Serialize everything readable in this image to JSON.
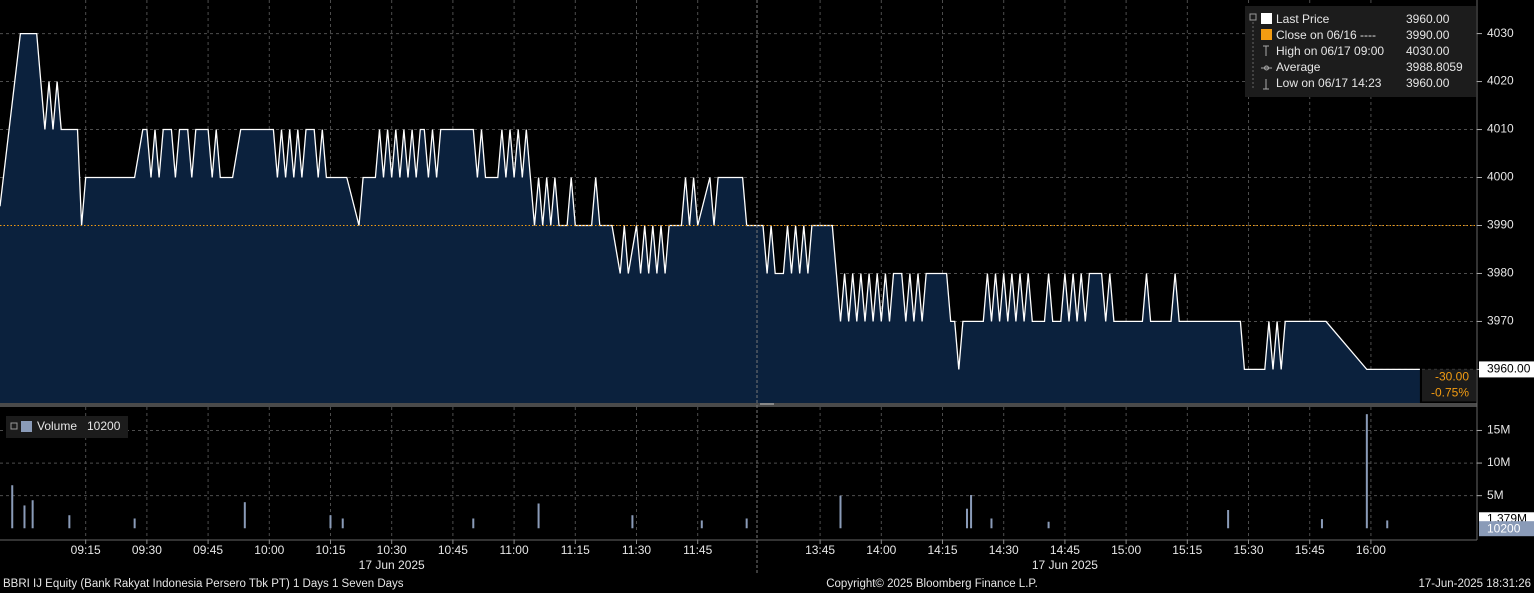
{
  "chart_data": [
    {
      "type": "area",
      "title": "BBRI IJ Equity",
      "xlim": [
        "08:54",
        "16:26"
      ],
      "session_break": [
        "12:00",
        "13:30"
      ],
      "xticks": [
        "09:15",
        "09:30",
        "09:45",
        "10:00",
        "10:15",
        "10:30",
        "10:45",
        "11:00",
        "11:15",
        "11:30",
        "11:45",
        "13:45",
        "14:00",
        "14:15",
        "14:30",
        "14:45",
        "15:00",
        "15:15",
        "15:30",
        "15:45",
        "16:00"
      ],
      "x_date_label": "17 Jun 2025",
      "ylim": [
        3953,
        4037
      ],
      "yticks": [
        3960,
        3970,
        3980,
        3990,
        4000,
        4010,
        4020,
        4030
      ],
      "grid": true,
      "series": [
        {
          "name": "Last Price",
          "color": "#ffffff",
          "fill": "#0b213d",
          "x": [
            "08:54",
            "08:59",
            "09:03",
            "09:04",
            "09:05",
            "09:06",
            "09:07",
            "09:08",
            "09:09",
            "09:13",
            "09:14",
            "09:15",
            "09:27",
            "09:29",
            "09:30",
            "09:31",
            "09:32",
            "09:33",
            "09:34",
            "09:36",
            "09:37",
            "09:38",
            "09:40",
            "09:41",
            "09:42",
            "09:45",
            "09:46",
            "09:47",
            "09:48",
            "09:51",
            "09:53",
            "10:01",
            "10:02",
            "10:03",
            "10:04",
            "10:05",
            "10:06",
            "10:07",
            "10:08",
            "10:09",
            "10:11",
            "10:12",
            "10:13",
            "10:14",
            "10:19",
            "10:22",
            "10:23",
            "10:26",
            "10:27",
            "10:28",
            "10:29",
            "10:30",
            "10:31",
            "10:32",
            "10:33",
            "10:34",
            "10:35",
            "10:36",
            "10:37",
            "10:38",
            "10:39",
            "10:40",
            "10:41",
            "10:42",
            "10:50",
            "10:51",
            "10:52",
            "10:53",
            "10:56",
            "10:57",
            "10:58",
            "10:59",
            "11:00",
            "11:01",
            "11:02",
            "11:03",
            "11:04",
            "11:05",
            "11:06",
            "11:07",
            "11:08",
            "11:09",
            "11:10",
            "11:11",
            "11:13",
            "11:14",
            "11:15",
            "11:19",
            "11:20",
            "11:21",
            "11:24",
            "11:26",
            "11:27",
            "11:28",
            "11:30",
            "11:31",
            "11:32",
            "11:33",
            "11:34",
            "11:35",
            "11:36",
            "11:37",
            "11:38",
            "11:41",
            "11:42",
            "11:43",
            "11:44",
            "11:45",
            "11:48",
            "11:49",
            "11:50",
            "11:52",
            "11:56",
            "11:57",
            "13:31",
            "13:32",
            "13:33",
            "13:34",
            "13:36",
            "13:37",
            "13:38",
            "13:39",
            "13:40",
            "13:41",
            "13:42",
            "13:43",
            "13:48",
            "13:49",
            "13:50",
            "13:51",
            "13:52",
            "13:53",
            "13:54",
            "13:55",
            "13:56",
            "13:57",
            "13:58",
            "13:59",
            "14:00",
            "14:01",
            "14:02",
            "14:03",
            "14:05",
            "14:06",
            "14:07",
            "14:08",
            "14:09",
            "14:10",
            "14:11",
            "14:16",
            "14:17",
            "14:18",
            "14:19",
            "14:20",
            "14:25",
            "14:26",
            "14:27",
            "14:28",
            "14:29",
            "14:30",
            "14:31",
            "14:32",
            "14:33",
            "14:34",
            "14:35",
            "14:36",
            "14:37",
            "14:40",
            "14:41",
            "14:42",
            "14:44",
            "14:45",
            "14:46",
            "14:47",
            "14:48",
            "14:49",
            "14:50",
            "14:51",
            "14:54",
            "14:55",
            "14:56",
            "14:57",
            "15:04",
            "15:05",
            "15:06",
            "15:11",
            "15:12",
            "15:13",
            "15:28",
            "15:29",
            "15:34",
            "15:35",
            "15:36",
            "15:37",
            "15:38",
            "15:39",
            "15:49",
            "15:59",
            "16:12"
          ],
          "values": [
            3994,
            4030,
            4030,
            4020,
            4010,
            4020,
            4010,
            4020,
            4010,
            4010,
            3990,
            4000,
            4000,
            4010,
            4010,
            4000,
            4010,
            4000,
            4010,
            4010,
            4000,
            4010,
            4010,
            4000,
            4010,
            4010,
            4000,
            4010,
            4000,
            4000,
            4010,
            4010,
            4000,
            4010,
            4000,
            4010,
            4000,
            4010,
            4000,
            4010,
            4010,
            4000,
            4010,
            4000,
            4000,
            3990,
            4000,
            4000,
            4010,
            4000,
            4010,
            4000,
            4010,
            4000,
            4010,
            4000,
            4010,
            4000,
            4010,
            4010,
            4000,
            4010,
            4000,
            4010,
            4010,
            4000,
            4010,
            4000,
            4000,
            4010,
            4000,
            4010,
            4000,
            4010,
            4000,
            4010,
            4000,
            3990,
            4000,
            3990,
            4000,
            3990,
            4000,
            3990,
            3990,
            4000,
            3990,
            3990,
            4000,
            3990,
            3990,
            3980,
            3990,
            3980,
            3990,
            3980,
            3990,
            3980,
            3990,
            3980,
            3990,
            3980,
            3990,
            3990,
            4000,
            3990,
            4000,
            3990,
            4000,
            3990,
            4000,
            4000,
            4000,
            3990,
            3990,
            3980,
            3990,
            3980,
            3980,
            3990,
            3980,
            3990,
            3980,
            3990,
            3980,
            3990,
            3990,
            3980,
            3970,
            3980,
            3970,
            3980,
            3970,
            3980,
            3970,
            3980,
            3970,
            3980,
            3970,
            3980,
            3970,
            3980,
            3980,
            3970,
            3980,
            3970,
            3980,
            3970,
            3980,
            3980,
            3970,
            3970,
            3960,
            3970,
            3970,
            3980,
            3970,
            3980,
            3970,
            3980,
            3970,
            3980,
            3970,
            3980,
            3970,
            3980,
            3970,
            3970,
            3980,
            3970,
            3970,
            3980,
            3970,
            3980,
            3970,
            3980,
            3970,
            3980,
            3980,
            3970,
            3980,
            3970,
            3970,
            3980,
            3970,
            3970,
            3980,
            3970,
            3970,
            3960,
            3960,
            3970,
            3960,
            3970,
            3960,
            3970,
            3970,
            3960,
            3960
          ]
        }
      ],
      "legend": [
        {
          "name": "Last Price",
          "value": 3960,
          "label": "3960.00"
        },
        {
          "name": "Close on 06/16 ----",
          "value": 3990,
          "label": "3990.00"
        },
        {
          "name": "High on 06/17 09:00",
          "value": 4030,
          "label": "4030.00"
        },
        {
          "name": "Average",
          "value": 3988.8059,
          "label": "3988.8059"
        },
        {
          "name": "Low on 06/17 14:23",
          "value": 3960,
          "label": "3960.00"
        }
      ],
      "change": {
        "value": -30,
        "label": "-30.00"
      },
      "change_pct": {
        "value": -0.75,
        "label": "-0.75%"
      }
    },
    {
      "type": "bar",
      "name": "Volume",
      "last": 10200,
      "color": "#8a9bb8",
      "ylim": [
        -1800000,
        18600000
      ],
      "yticks": [
        {
          "value": 5000000,
          "label": "5M"
        },
        {
          "value": 10000000,
          "label": "10M"
        },
        {
          "value": 15000000,
          "label": "15M"
        }
      ],
      "average": {
        "value": 1379000,
        "label": "1.379M"
      },
      "x": [
        "08:57",
        "09:00",
        "09:02",
        "09:11",
        "09:27",
        "09:54",
        "10:15",
        "10:18",
        "10:50",
        "11:06",
        "11:29",
        "11:46",
        "11:57",
        "13:50",
        "14:21",
        "14:22",
        "14:27",
        "14:41",
        "15:25",
        "15:48",
        "15:59",
        "16:04"
      ],
      "values": [
        6600000,
        3500000,
        4300000,
        2000000,
        1500000,
        4000000,
        2000000,
        1500000,
        1500000,
        3800000,
        2000000,
        1200000,
        1500000,
        5000000,
        3000000,
        5100000,
        1500000,
        1000000,
        2800000,
        1400000,
        17500000,
        1200000
      ]
    }
  ],
  "footer": {
    "left": "BBRI IJ Equity (Bank Rakyat Indonesia Persero Tbk PT) 1 Days 1 Seven Days",
    "center": "Copyright© 2025 Bloomberg Finance L.P.",
    "right": "17-Jun-2025 18:31:26"
  }
}
